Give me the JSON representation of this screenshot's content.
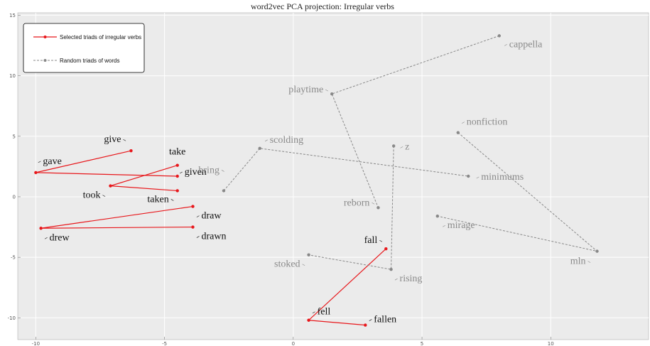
{
  "chart_data": {
    "type": "line",
    "title": "word2vec PCA projection: Irregular verbs",
    "xlim": [
      -10.7,
      13.8
    ],
    "ylim": [
      -11.8,
      15.2
    ],
    "xticks": [
      -10,
      -5,
      0,
      5,
      10
    ],
    "yticks": [
      -10,
      -5,
      0,
      5,
      10,
      15
    ],
    "grid": true,
    "legend_position": "top-left",
    "colors": {
      "selected": "#e8171b",
      "random": "#888888",
      "background": "#ebebeb",
      "grid": "#ffffff"
    },
    "series": [
      {
        "name": "Selected triads of irregular verbs",
        "style": "solid",
        "color": "#e8171b",
        "segments": [
          [
            {
              "word": "give",
              "x": -6.3,
              "y": 3.8
            },
            {
              "word": "gave",
              "x": -10.0,
              "y": 2.0
            },
            {
              "word": "given",
              "x": -4.5,
              "y": 1.7
            }
          ],
          [
            {
              "word": "take",
              "x": -4.5,
              "y": 2.6
            },
            {
              "word": "took",
              "x": -7.1,
              "y": 0.9
            },
            {
              "word": "taken",
              "x": -4.5,
              "y": 0.5
            }
          ],
          [
            {
              "word": "draw",
              "x": -3.9,
              "y": -0.8
            },
            {
              "word": "drew",
              "x": -9.8,
              "y": -2.6
            },
            {
              "word": "drawn",
              "x": -3.9,
              "y": -2.5
            }
          ],
          [
            {
              "word": "fall",
              "x": 3.6,
              "y": -4.3
            },
            {
              "word": "fell",
              "x": 0.6,
              "y": -10.2
            },
            {
              "word": "fallen",
              "x": 2.8,
              "y": -10.6
            }
          ]
        ]
      },
      {
        "name": "Random triads of words",
        "style": "dashed",
        "color": "#888888",
        "segments": [
          [
            {
              "word": "cappella",
              "x": 8.0,
              "y": 13.3
            },
            {
              "word": "playtime",
              "x": 1.5,
              "y": 8.5
            },
            {
              "word": "reborn",
              "x": 3.3,
              "y": -0.9
            }
          ],
          [
            {
              "word": "bring",
              "x": -2.7,
              "y": 0.5
            },
            {
              "word": "scolding",
              "x": -1.3,
              "y": 4.0
            },
            {
              "word": "minimums",
              "x": 6.8,
              "y": 1.7
            }
          ],
          [
            {
              "word": "nonfiction",
              "x": 6.4,
              "y": 5.3
            },
            {
              "word": "mln",
              "x": 11.8,
              "y": -4.5
            },
            {
              "word": "mirage",
              "x": 5.6,
              "y": -1.6
            }
          ],
          [
            {
              "word": "z",
              "x": 3.9,
              "y": 4.2
            },
            {
              "word": "rising",
              "x": 3.8,
              "y": -6.0
            },
            {
              "word": "stoked",
              "x": 0.6,
              "y": -4.8
            }
          ]
        ]
      }
    ]
  }
}
